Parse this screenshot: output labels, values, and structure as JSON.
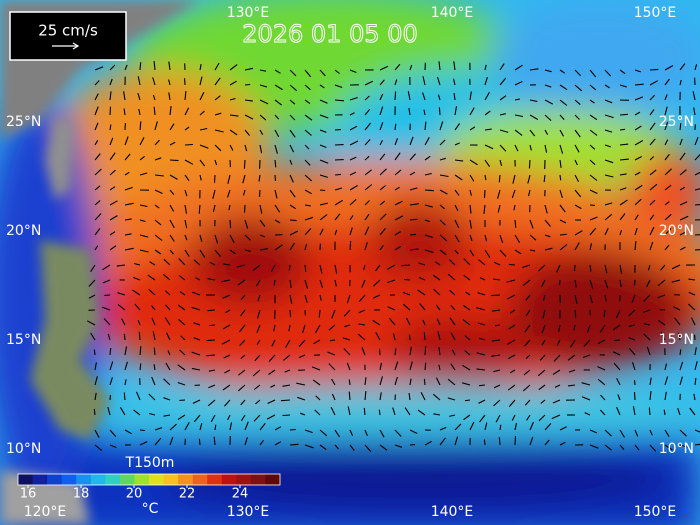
{
  "legend_box": {
    "label": "25 cm/s"
  },
  "timestamp": "2026 01 05 00",
  "top_longitude_labels": [
    "130°E",
    "140°E",
    "150°E"
  ],
  "bottom_longitude_labels": [
    "120°E",
    "130°E",
    "140°E",
    "150°E"
  ],
  "left_latitude_labels": [
    "25°N",
    "20°N",
    "15°N",
    "10°N"
  ],
  "right_latitude_labels": [
    "25°N",
    "20°N",
    "15°N",
    "10°N"
  ],
  "colorbar": {
    "title": "T150m",
    "ticks": [
      16,
      18,
      20,
      22,
      24
    ],
    "unit": "°C"
  }
}
